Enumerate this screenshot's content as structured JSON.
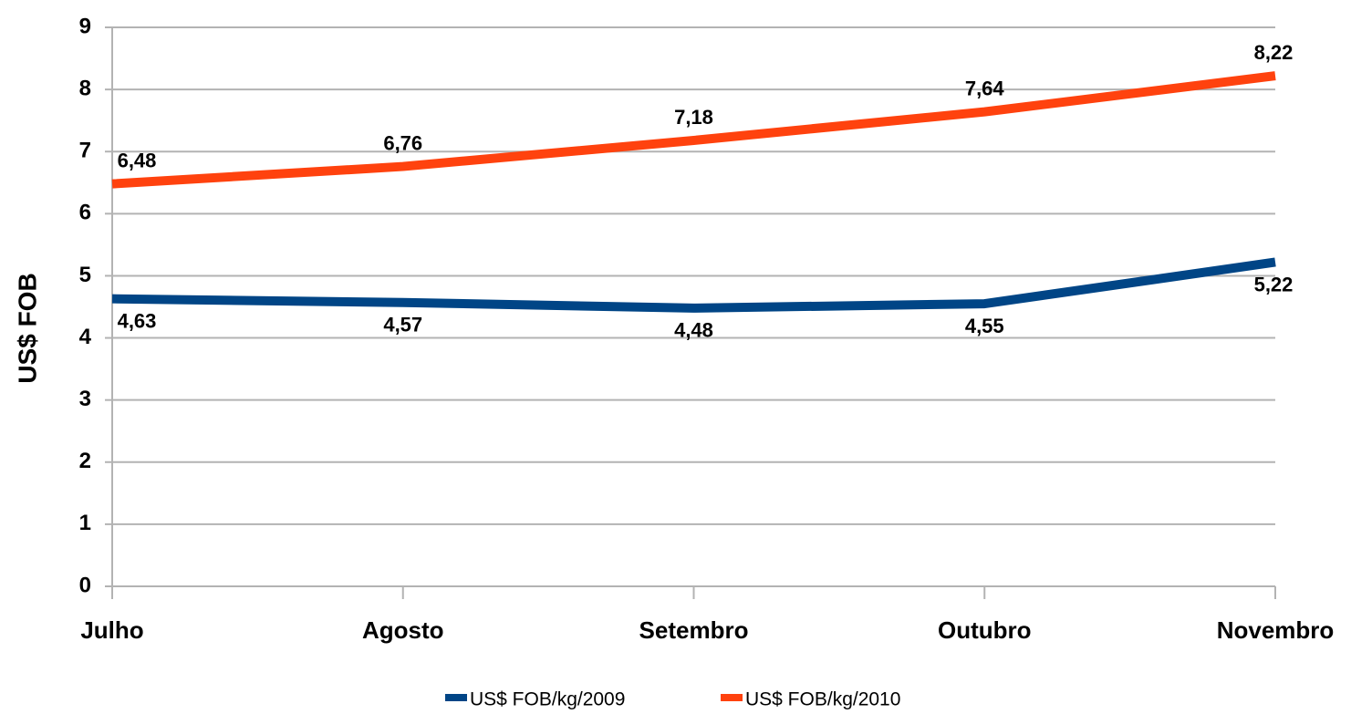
{
  "chart_data": {
    "type": "line",
    "y_label": "US$ FOB",
    "categories": [
      "Julho",
      "Agosto",
      "Setembro",
      "Outubro",
      "Novembro"
    ],
    "series": [
      {
        "name": "US$ FOB/kg/2009",
        "color": "#004586",
        "values": [
          4.63,
          4.57,
          4.48,
          4.55,
          5.22
        ],
        "value_labels": [
          "4,63",
          "4,57",
          "4,48",
          "4,55",
          "5,22"
        ]
      },
      {
        "name": "US$ FOB/kg/2010",
        "color": "#ff420e",
        "values": [
          6.48,
          6.76,
          7.18,
          7.64,
          8.22
        ],
        "value_labels": [
          "6,48",
          "6,76",
          "7,18",
          "7,64",
          "8,22"
        ]
      }
    ],
    "ylim": [
      0,
      9
    ],
    "yticks": [
      0,
      1,
      2,
      3,
      4,
      5,
      6,
      7,
      8,
      9
    ],
    "grid": true,
    "legend": "bottom"
  }
}
